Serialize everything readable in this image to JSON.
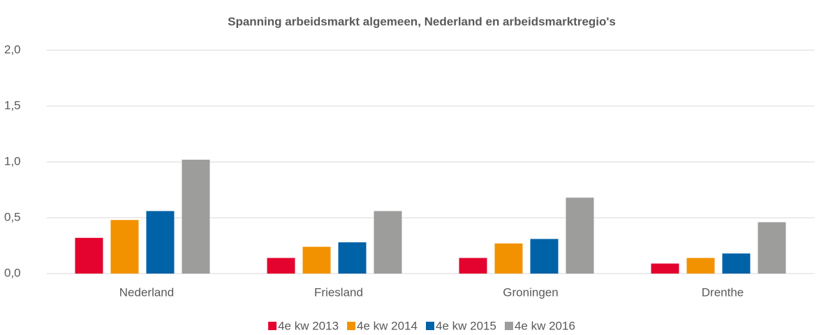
{
  "chart_data": {
    "type": "bar",
    "title": "Spanning arbeidsmarkt algemeen, Nederland en arbeidsmarktregio's",
    "categories": [
      "Nederland",
      "Friesland",
      "Groningen",
      "Drenthe"
    ],
    "series": [
      {
        "name": "4e kw 2013",
        "color": "#e4032e",
        "values": [
          0.32,
          0.14,
          0.14,
          0.09
        ]
      },
      {
        "name": "4e kw 2014",
        "color": "#f39200",
        "values": [
          0.48,
          0.24,
          0.27,
          0.14
        ]
      },
      {
        "name": "4e kw 2015",
        "color": "#0062a7",
        "values": [
          0.56,
          0.28,
          0.31,
          0.18
        ]
      },
      {
        "name": "4e kw 2016",
        "color": "#9d9d9c",
        "values": [
          1.02,
          0.56,
          0.68,
          0.46
        ]
      }
    ],
    "ylim": [
      0,
      2
    ],
    "yticks": [
      {
        "value": 0,
        "label": "0,0"
      },
      {
        "value": 0.5,
        "label": "0,5"
      },
      {
        "value": 1,
        "label": "1,0"
      },
      {
        "value": 1.5,
        "label": "1,5"
      },
      {
        "value": 2,
        "label": "2,0"
      }
    ],
    "grid": true,
    "legend": "bottom"
  }
}
